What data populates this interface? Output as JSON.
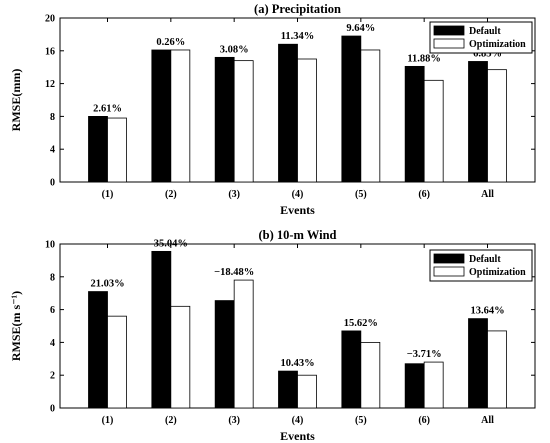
{
  "chart_data": [
    {
      "type": "bar",
      "title": "(a)  Precipitation",
      "xlabel": "Events",
      "ylabel": "RMSE(mm)",
      "categories": [
        "(1)",
        "(2)",
        "(3)",
        "(4)",
        "(5)",
        "(6)",
        "All"
      ],
      "ylim": [
        0,
        20
      ],
      "yticks": [
        0,
        4,
        8,
        12,
        16,
        20
      ],
      "series": [
        {
          "name": "Default",
          "color": "#000000",
          "values": [
            8.0,
            16.1,
            15.2,
            16.8,
            17.8,
            14.1,
            14.7
          ]
        },
        {
          "name": "Optimization",
          "color": "#ffffff",
          "values": [
            7.8,
            16.1,
            14.8,
            15.0,
            16.1,
            12.4,
            13.7
          ]
        }
      ],
      "data_labels": [
        "2.61%",
        "0.26%",
        "3.08%",
        "11.34%",
        "9.64%",
        "11.88%",
        "6.83%"
      ],
      "legend": "top-right"
    },
    {
      "type": "bar",
      "title": "(b) 10-m Wind",
      "xlabel": "Events",
      "ylabel": "RMSE(m s⁻¹)",
      "categories": [
        "(1)",
        "(2)",
        "(3)",
        "(4)",
        "(5)",
        "(6)",
        "All"
      ],
      "ylim": [
        0,
        10
      ],
      "yticks": [
        0,
        2,
        4,
        6,
        8,
        10
      ],
      "series": [
        {
          "name": "Default",
          "color": "#000000",
          "values": [
            7.1,
            9.55,
            6.55,
            2.25,
            4.7,
            2.7,
            5.45
          ]
        },
        {
          "name": "Optimization",
          "color": "#ffffff",
          "values": [
            5.6,
            6.2,
            7.8,
            2.0,
            4.0,
            2.8,
            4.7
          ]
        }
      ],
      "data_labels": [
        "21.03%",
        "35.04%",
        "−18.48%",
        "10.43%",
        "15.62%",
        "−3.71%",
        "13.64%"
      ],
      "legend": "top-right"
    }
  ]
}
